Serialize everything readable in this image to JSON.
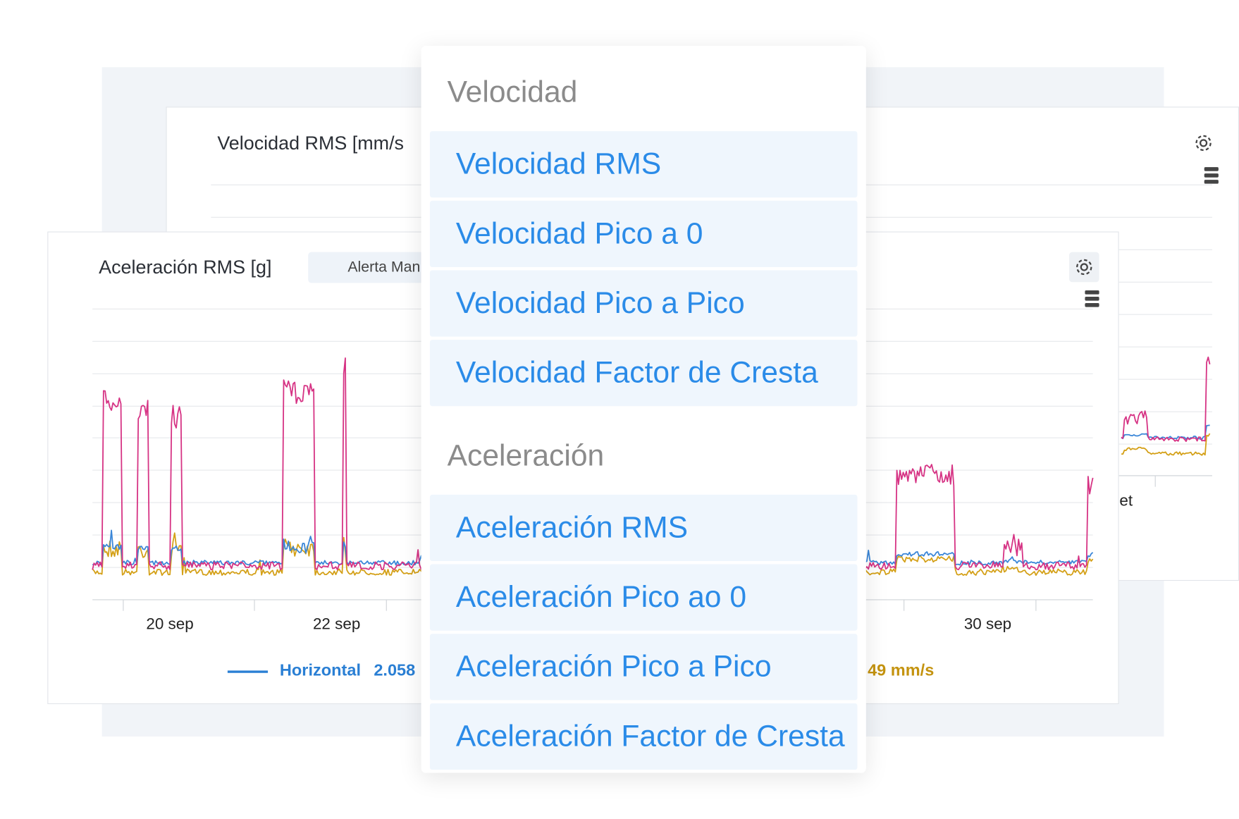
{
  "back_card": {
    "title": "Velocidad RMS [mm/s",
    "x_tick_label": "et"
  },
  "front_card": {
    "title": "Aceleración RMS [g]",
    "alert_button": "Alerta Man",
    "x_ticks": [
      "20 sep",
      "22 sep",
      "30 sep"
    ],
    "legend": {
      "name": "Horizontal",
      "value": "2.058",
      "other_value": "49 mm/s"
    }
  },
  "menu": {
    "groups": [
      {
        "label": "Velocidad",
        "items": [
          "Velocidad RMS",
          "Velocidad Pico a 0",
          "Velocidad Pico a Pico",
          "Velocidad Factor de Cresta"
        ]
      },
      {
        "label": "Aceleración",
        "items": [
          "Aceleración RMS",
          "Aceleración Pico ao 0",
          "Aceleración Pico a Pico",
          "Aceleración Factor de Cresta"
        ]
      }
    ]
  }
}
